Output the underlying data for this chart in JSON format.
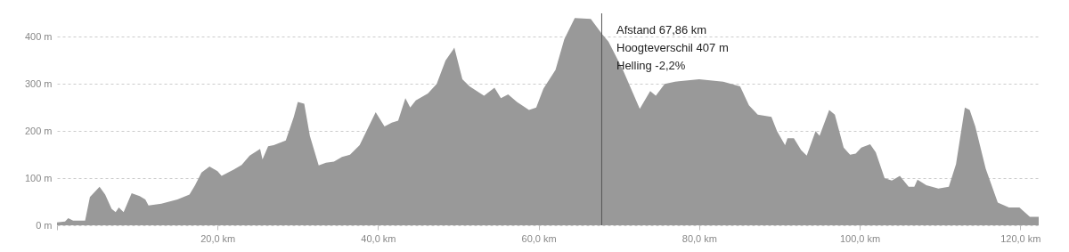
{
  "chart_data": {
    "type": "area",
    "x": [
      0,
      1,
      1.4,
      2,
      3.5,
      4.1,
      5.3,
      6,
      6.8,
      7.3,
      7.7,
      8.3,
      9.3,
      10.3,
      11,
      11.4,
      13,
      15,
      16.5,
      17.2,
      18,
      19,
      20,
      20.5,
      22,
      23,
      24,
      25.3,
      25.6,
      26.3,
      27,
      28.5,
      29.5,
      30,
      30.8,
      31.5,
      32.6,
      33.5,
      34.5,
      35.5,
      36.5,
      37.7,
      39.7,
      40.8,
      41.7,
      42.5,
      43.4,
      44,
      44.7,
      46.2,
      47.3,
      48.4,
      49.5,
      50.5,
      51.4,
      53.2,
      54.5,
      55.3,
      56.2,
      57.3,
      58.8,
      59.7,
      60.6,
      62.1,
      63.2,
      64.5,
      66.5,
      67.86,
      68.7,
      70.5,
      72.6,
      73.9,
      74.6,
      75.7,
      77,
      80,
      83,
      85.1,
      86.2,
      87.3,
      89,
      89.7,
      90.7,
      91,
      91.8,
      92.7,
      93.4,
      94.5,
      95,
      96.2,
      96.9,
      98,
      98.8,
      99.5,
      100.2,
      101.3,
      102,
      103.1,
      104,
      105,
      106.1,
      106.8,
      107.2,
      108.3,
      109.8,
      111.1,
      112,
      113.1,
      113.7,
      114.4,
      115.7,
      117.2,
      118.6,
      119.9,
      121.2,
      122.3
    ],
    "series": [
      {
        "color": "#999999",
        "values": [
          6,
          8,
          15,
          10,
          10,
          60,
          82,
          65,
          35,
          28,
          38,
          28,
          68,
          62,
          55,
          42,
          46,
          55,
          65,
          85,
          112,
          125,
          115,
          105,
          118,
          128,
          148,
          162,
          140,
          168,
          170,
          180,
          230,
          262,
          258,
          190,
          127,
          133,
          135,
          145,
          150,
          170,
          240,
          210,
          218,
          222,
          270,
          250,
          265,
          280,
          300,
          350,
          377,
          310,
          295,
          275,
          292,
          270,
          278,
          262,
          245,
          250,
          290,
          330,
          395,
          440,
          438,
          407,
          390,
          330,
          247,
          285,
          275,
          300,
          305,
          310,
          305,
          295,
          255,
          235,
          230,
          200,
          170,
          185,
          185,
          160,
          148,
          200,
          190,
          245,
          235,
          165,
          150,
          152,
          165,
          172,
          155,
          100,
          95,
          105,
          82,
          82,
          97,
          85,
          78,
          82,
          130,
          250,
          245,
          210,
          120,
          48,
          38,
          38,
          18,
          18
        ]
      }
    ],
    "xlim": [
      0,
      122.3
    ],
    "xticks": [
      {
        "value": 0,
        "label": null
      },
      {
        "value": 20,
        "label": "20,0 km"
      },
      {
        "value": 40,
        "label": "40,0 km"
      },
      {
        "value": 60,
        "label": "60,0 km"
      },
      {
        "value": 80,
        "label": "80,0 km"
      },
      {
        "value": 100,
        "label": "100,0 km"
      },
      {
        "value": 120,
        "label": "120,0 km"
      }
    ],
    "ylim": [
      0,
      450
    ],
    "yticks": [
      {
        "value": 0,
        "label": "0 m"
      },
      {
        "value": 100,
        "label": "100 m"
      },
      {
        "value": 200,
        "label": "200 m"
      },
      {
        "value": 300,
        "label": "300 m"
      },
      {
        "value": 400,
        "label": "400 m"
      }
    ],
    "grid": "y",
    "ref_lines": [
      {
        "axis": "x",
        "value": 67.86,
        "color": "#555555"
      }
    ],
    "annotations": [
      "Afstand 67,86 km",
      "Hoogteverschil 407 m",
      "Helling -2,2%"
    ]
  }
}
